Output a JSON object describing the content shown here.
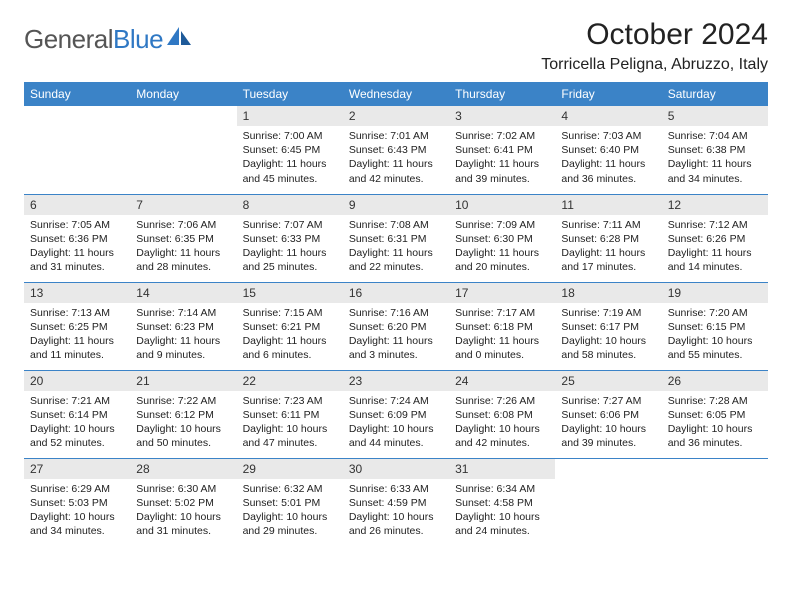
{
  "logo": {
    "text_part1": "General",
    "text_part2": "Blue"
  },
  "header": {
    "month_title": "October 2024",
    "location": "Torricella Peligna, Abruzzo, Italy"
  },
  "colors": {
    "header_bg": "#3b83c7",
    "header_fg": "#ffffff",
    "daynum_bg": "#e9e9e9",
    "border": "#3b83c7",
    "logo_blue": "#2f78c4"
  },
  "typography": {
    "title_fontsize": 30,
    "location_fontsize": 16,
    "dayheader_fontsize": 12,
    "cell_fontsize": 10.5
  },
  "day_headers": [
    "Sunday",
    "Monday",
    "Tuesday",
    "Wednesday",
    "Thursday",
    "Friday",
    "Saturday"
  ],
  "weeks": [
    [
      null,
      null,
      {
        "n": "1",
        "sunrise": "7:00 AM",
        "sunset": "6:45 PM",
        "daylight": "11 hours and 45 minutes."
      },
      {
        "n": "2",
        "sunrise": "7:01 AM",
        "sunset": "6:43 PM",
        "daylight": "11 hours and 42 minutes."
      },
      {
        "n": "3",
        "sunrise": "7:02 AM",
        "sunset": "6:41 PM",
        "daylight": "11 hours and 39 minutes."
      },
      {
        "n": "4",
        "sunrise": "7:03 AM",
        "sunset": "6:40 PM",
        "daylight": "11 hours and 36 minutes."
      },
      {
        "n": "5",
        "sunrise": "7:04 AM",
        "sunset": "6:38 PM",
        "daylight": "11 hours and 34 minutes."
      }
    ],
    [
      {
        "n": "6",
        "sunrise": "7:05 AM",
        "sunset": "6:36 PM",
        "daylight": "11 hours and 31 minutes."
      },
      {
        "n": "7",
        "sunrise": "7:06 AM",
        "sunset": "6:35 PM",
        "daylight": "11 hours and 28 minutes."
      },
      {
        "n": "8",
        "sunrise": "7:07 AM",
        "sunset": "6:33 PM",
        "daylight": "11 hours and 25 minutes."
      },
      {
        "n": "9",
        "sunrise": "7:08 AM",
        "sunset": "6:31 PM",
        "daylight": "11 hours and 22 minutes."
      },
      {
        "n": "10",
        "sunrise": "7:09 AM",
        "sunset": "6:30 PM",
        "daylight": "11 hours and 20 minutes."
      },
      {
        "n": "11",
        "sunrise": "7:11 AM",
        "sunset": "6:28 PM",
        "daylight": "11 hours and 17 minutes."
      },
      {
        "n": "12",
        "sunrise": "7:12 AM",
        "sunset": "6:26 PM",
        "daylight": "11 hours and 14 minutes."
      }
    ],
    [
      {
        "n": "13",
        "sunrise": "7:13 AM",
        "sunset": "6:25 PM",
        "daylight": "11 hours and 11 minutes."
      },
      {
        "n": "14",
        "sunrise": "7:14 AM",
        "sunset": "6:23 PM",
        "daylight": "11 hours and 9 minutes."
      },
      {
        "n": "15",
        "sunrise": "7:15 AM",
        "sunset": "6:21 PM",
        "daylight": "11 hours and 6 minutes."
      },
      {
        "n": "16",
        "sunrise": "7:16 AM",
        "sunset": "6:20 PM",
        "daylight": "11 hours and 3 minutes."
      },
      {
        "n": "17",
        "sunrise": "7:17 AM",
        "sunset": "6:18 PM",
        "daylight": "11 hours and 0 minutes."
      },
      {
        "n": "18",
        "sunrise": "7:19 AM",
        "sunset": "6:17 PM",
        "daylight": "10 hours and 58 minutes."
      },
      {
        "n": "19",
        "sunrise": "7:20 AM",
        "sunset": "6:15 PM",
        "daylight": "10 hours and 55 minutes."
      }
    ],
    [
      {
        "n": "20",
        "sunrise": "7:21 AM",
        "sunset": "6:14 PM",
        "daylight": "10 hours and 52 minutes."
      },
      {
        "n": "21",
        "sunrise": "7:22 AM",
        "sunset": "6:12 PM",
        "daylight": "10 hours and 50 minutes."
      },
      {
        "n": "22",
        "sunrise": "7:23 AM",
        "sunset": "6:11 PM",
        "daylight": "10 hours and 47 minutes."
      },
      {
        "n": "23",
        "sunrise": "7:24 AM",
        "sunset": "6:09 PM",
        "daylight": "10 hours and 44 minutes."
      },
      {
        "n": "24",
        "sunrise": "7:26 AM",
        "sunset": "6:08 PM",
        "daylight": "10 hours and 42 minutes."
      },
      {
        "n": "25",
        "sunrise": "7:27 AM",
        "sunset": "6:06 PM",
        "daylight": "10 hours and 39 minutes."
      },
      {
        "n": "26",
        "sunrise": "7:28 AM",
        "sunset": "6:05 PM",
        "daylight": "10 hours and 36 minutes."
      }
    ],
    [
      {
        "n": "27",
        "sunrise": "6:29 AM",
        "sunset": "5:03 PM",
        "daylight": "10 hours and 34 minutes."
      },
      {
        "n": "28",
        "sunrise": "6:30 AM",
        "sunset": "5:02 PM",
        "daylight": "10 hours and 31 minutes."
      },
      {
        "n": "29",
        "sunrise": "6:32 AM",
        "sunset": "5:01 PM",
        "daylight": "10 hours and 29 minutes."
      },
      {
        "n": "30",
        "sunrise": "6:33 AM",
        "sunset": "4:59 PM",
        "daylight": "10 hours and 26 minutes."
      },
      {
        "n": "31",
        "sunrise": "6:34 AM",
        "sunset": "4:58 PM",
        "daylight": "10 hours and 24 minutes."
      },
      null,
      null
    ]
  ],
  "labels": {
    "sunrise": "Sunrise:",
    "sunset": "Sunset:",
    "daylight": "Daylight:"
  }
}
